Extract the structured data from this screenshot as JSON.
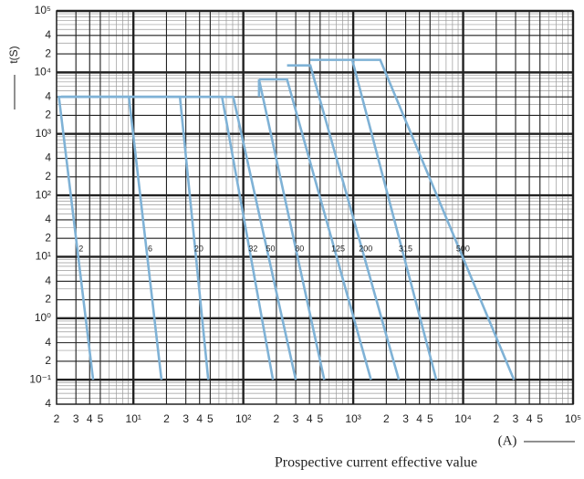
{
  "chart_data": {
    "type": "line",
    "x_label": "(A)",
    "title": "Prospective current effective value",
    "y_label": "t(S)",
    "xscale": "log",
    "yscale": "log",
    "grid": true,
    "minor_grid": true,
    "xlim": [
      2,
      100000
    ],
    "ylim": [
      0.04,
      100000
    ],
    "xticks": [
      2,
      3,
      4,
      5,
      {
        "value": 10,
        "label": "10¹"
      },
      {
        "value": 20,
        "label": "2"
      },
      {
        "value": 30,
        "label": "3"
      },
      {
        "value": 40,
        "label": "4"
      },
      {
        "value": 50,
        "label": "5"
      },
      {
        "value": 100,
        "label": "10²"
      },
      {
        "value": 200,
        "label": "2"
      },
      {
        "value": 300,
        "label": "3"
      },
      {
        "value": 400,
        "label": "4"
      },
      {
        "value": 500,
        "label": "5"
      },
      {
        "value": 1000,
        "label": "10³"
      },
      {
        "value": 2000,
        "label": "2"
      },
      {
        "value": 3000,
        "label": "3"
      },
      {
        "value": 4000,
        "label": "4"
      },
      {
        "value": 5000,
        "label": "5"
      },
      {
        "value": 10000,
        "label": "10⁴"
      },
      {
        "value": 20000,
        "label": "2"
      },
      {
        "value": 30000,
        "label": "3"
      },
      {
        "value": 40000,
        "label": "4"
      },
      {
        "value": 50000,
        "label": "5"
      },
      {
        "value": 100000,
        "label": "10⁵"
      }
    ],
    "yticks": [
      {
        "value": 0.04,
        "label": "4"
      },
      {
        "value": 0.1,
        "label": "10⁻¹"
      },
      {
        "value": 0.2,
        "label": "2"
      },
      {
        "value": 0.4,
        "label": "4"
      },
      {
        "value": 1,
        "label": "10⁰"
      },
      2,
      4,
      {
        "value": 10,
        "label": "10¹"
      },
      {
        "value": 20,
        "label": "2"
      },
      {
        "value": 40,
        "label": "4"
      },
      {
        "value": 100,
        "label": "10²"
      },
      {
        "value": 200,
        "label": "2"
      },
      {
        "value": 400,
        "label": "4"
      },
      {
        "value": 1000,
        "label": "10³"
      },
      {
        "value": 2000,
        "label": "2"
      },
      {
        "value": 4000,
        "label": "4"
      },
      {
        "value": 10000,
        "label": "10⁴"
      },
      {
        "value": 20000,
        "label": "2"
      },
      {
        "value": 40000,
        "label": "4"
      },
      {
        "value": 100000,
        "label": "10⁵"
      }
    ],
    "series": [
      {
        "name": "2",
        "color": "#7fb2d6",
        "x": [
          2.2,
          2.1,
          4.3
        ],
        "values": [
          4000,
          4000,
          0.1
        ]
      },
      {
        "name": "6",
        "color": "#7fb2d6",
        "x": [
          2.2,
          9.1,
          18
        ],
        "values": [
          4000,
          4000,
          0.1
        ]
      },
      {
        "name": "20",
        "color": "#7fb2d6",
        "x": [
          2.2,
          26.5,
          48
        ],
        "values": [
          4000,
          4000,
          0.1
        ]
      },
      {
        "name": "32",
        "color": "#7fb2d6",
        "x": [
          2.2,
          64,
          186
        ],
        "values": [
          4000,
          4000,
          0.1
        ]
      },
      {
        "name": "50",
        "color": "#7fb2d6",
        "x": [
          2.2,
          81,
          300
        ],
        "values": [
          4000,
          4000,
          0.1
        ]
      },
      {
        "name": "80",
        "color": "#7fb2d6",
        "x": [
          139,
          139,
          545
        ],
        "values": [
          4000,
          7700,
          0.1
        ]
      },
      {
        "name": "125",
        "color": "#7fb2d6",
        "x": [
          139,
          250,
          1450
        ],
        "values": [
          7700,
          7700,
          0.1
        ]
      },
      {
        "name": "200",
        "color": "#7fb2d6",
        "x": [
          250,
          407,
          2600
        ],
        "values": [
          13000,
          13000,
          0.1
        ]
      },
      {
        "name": "315",
        "color": "#7fb2d6",
        "x": [
          407,
          980,
          5700
        ],
        "values": [
          16000,
          16000,
          0.1
        ]
      },
      {
        "name": "500",
        "color": "#7fb2d6",
        "x": [
          980,
          1760,
          29000
        ],
        "values": [
          16000,
          16000,
          0.1
        ]
      }
    ]
  }
}
